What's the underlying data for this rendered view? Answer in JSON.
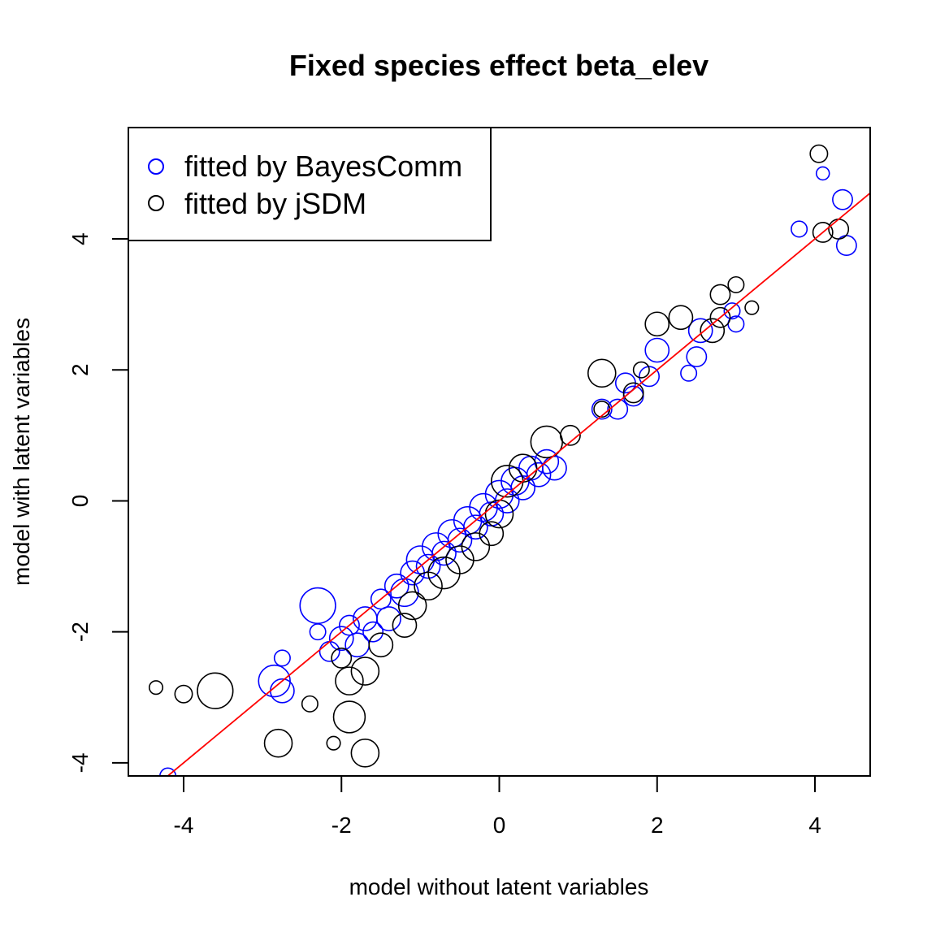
{
  "chart_data": {
    "type": "scatter",
    "title": "Fixed species effect beta_elev",
    "xlabel": "model without latent variables",
    "ylabel": "model with latent variables",
    "xlim": [
      -4.7,
      4.7
    ],
    "ylim": [
      -4.2,
      5.7
    ],
    "xticks": [
      -4,
      -2,
      0,
      2,
      4
    ],
    "yticks": [
      -4,
      -2,
      0,
      2,
      4
    ],
    "xtick_labels": [
      "-4",
      "-2",
      "0",
      "2",
      "4"
    ],
    "ytick_labels": [
      "-4",
      "-2",
      "0",
      "2",
      "4"
    ],
    "legend": {
      "position": "top-left",
      "entries": [
        {
          "label": "fitted by BayesComm",
          "color": "#0000ff"
        },
        {
          "label": "fitted by jSDM",
          "color": "#000000"
        }
      ]
    },
    "reference_line": {
      "type": "identity",
      "color": "#ff0000"
    },
    "series": [
      {
        "name": "fitted by BayesComm",
        "color": "#0000ff",
        "points": [
          {
            "x": -4.2,
            "y": -4.2,
            "r": 0.2
          },
          {
            "x": -2.3,
            "y": -1.6,
            "r": 0.45
          },
          {
            "x": -2.85,
            "y": -2.75,
            "r": 0.4
          },
          {
            "x": -2.75,
            "y": -2.9,
            "r": 0.3
          },
          {
            "x": -2.75,
            "y": -2.4,
            "r": 0.2
          },
          {
            "x": -2.3,
            "y": -2.0,
            "r": 0.2
          },
          {
            "x": -2.15,
            "y": -2.3,
            "r": 0.25
          },
          {
            "x": -2.0,
            "y": -2.1,
            "r": 0.3
          },
          {
            "x": -1.9,
            "y": -1.9,
            "r": 0.25
          },
          {
            "x": -1.8,
            "y": -2.2,
            "r": 0.3
          },
          {
            "x": -1.7,
            "y": -1.8,
            "r": 0.3
          },
          {
            "x": -1.6,
            "y": -2.0,
            "r": 0.25
          },
          {
            "x": -1.5,
            "y": -1.5,
            "r": 0.25
          },
          {
            "x": -1.4,
            "y": -1.8,
            "r": 0.3
          },
          {
            "x": -1.3,
            "y": -1.3,
            "r": 0.3
          },
          {
            "x": -1.2,
            "y": -1.4,
            "r": 0.35
          },
          {
            "x": -1.1,
            "y": -1.1,
            "r": 0.3
          },
          {
            "x": -1.0,
            "y": -0.9,
            "r": 0.35
          },
          {
            "x": -0.9,
            "y": -1.0,
            "r": 0.3
          },
          {
            "x": -0.8,
            "y": -0.7,
            "r": 0.35
          },
          {
            "x": -0.7,
            "y": -0.8,
            "r": 0.3
          },
          {
            "x": -0.6,
            "y": -0.5,
            "r": 0.35
          },
          {
            "x": -0.5,
            "y": -0.6,
            "r": 0.3
          },
          {
            "x": -0.4,
            "y": -0.3,
            "r": 0.35
          },
          {
            "x": -0.3,
            "y": -0.4,
            "r": 0.3
          },
          {
            "x": -0.2,
            "y": -0.1,
            "r": 0.35
          },
          {
            "x": -0.1,
            "y": -0.2,
            "r": 0.3
          },
          {
            "x": 0.0,
            "y": 0.1,
            "r": 0.35
          },
          {
            "x": 0.1,
            "y": 0.0,
            "r": 0.3
          },
          {
            "x": 0.2,
            "y": 0.3,
            "r": 0.35
          },
          {
            "x": 0.3,
            "y": 0.2,
            "r": 0.3
          },
          {
            "x": 0.4,
            "y": 0.5,
            "r": 0.3
          },
          {
            "x": 0.5,
            "y": 0.4,
            "r": 0.3
          },
          {
            "x": 0.6,
            "y": 0.6,
            "r": 0.3
          },
          {
            "x": 0.7,
            "y": 0.5,
            "r": 0.3
          },
          {
            "x": 1.3,
            "y": 1.4,
            "r": 0.25
          },
          {
            "x": 1.5,
            "y": 1.4,
            "r": 0.25
          },
          {
            "x": 1.6,
            "y": 1.8,
            "r": 0.25
          },
          {
            "x": 1.7,
            "y": 1.6,
            "r": 0.25
          },
          {
            "x": 1.9,
            "y": 1.9,
            "r": 0.25
          },
          {
            "x": 2.0,
            "y": 2.3,
            "r": 0.3
          },
          {
            "x": 2.5,
            "y": 2.2,
            "r": 0.25
          },
          {
            "x": 2.4,
            "y": 1.95,
            "r": 0.2
          },
          {
            "x": 2.55,
            "y": 2.6,
            "r": 0.3
          },
          {
            "x": 3.0,
            "y": 2.7,
            "r": 0.2
          },
          {
            "x": 2.95,
            "y": 2.9,
            "r": 0.2
          },
          {
            "x": 3.8,
            "y": 4.15,
            "r": 0.2
          },
          {
            "x": 4.1,
            "y": 5.0,
            "r": 0.15
          },
          {
            "x": 4.35,
            "y": 4.6,
            "r": 0.25
          },
          {
            "x": 4.4,
            "y": 3.9,
            "r": 0.25
          }
        ]
      },
      {
        "name": "fitted by jSDM",
        "color": "#000000",
        "points": [
          {
            "x": -4.35,
            "y": -2.85,
            "r": 0.17
          },
          {
            "x": -4.0,
            "y": -2.95,
            "r": 0.22
          },
          {
            "x": -3.6,
            "y": -2.9,
            "r": 0.45
          },
          {
            "x": -2.8,
            "y": -3.7,
            "r": 0.35
          },
          {
            "x": -2.4,
            "y": -3.1,
            "r": 0.2
          },
          {
            "x": -2.1,
            "y": -3.7,
            "r": 0.17
          },
          {
            "x": -1.9,
            "y": -3.3,
            "r": 0.4
          },
          {
            "x": -1.7,
            "y": -3.85,
            "r": 0.35
          },
          {
            "x": -1.9,
            "y": -2.75,
            "r": 0.35
          },
          {
            "x": -1.7,
            "y": -2.6,
            "r": 0.35
          },
          {
            "x": -2.0,
            "y": -2.4,
            "r": 0.25
          },
          {
            "x": -1.5,
            "y": -2.2,
            "r": 0.3
          },
          {
            "x": -1.2,
            "y": -1.9,
            "r": 0.3
          },
          {
            "x": -1.1,
            "y": -1.6,
            "r": 0.35
          },
          {
            "x": -0.9,
            "y": -1.3,
            "r": 0.35
          },
          {
            "x": -0.7,
            "y": -1.1,
            "r": 0.4
          },
          {
            "x": -0.5,
            "y": -0.9,
            "r": 0.35
          },
          {
            "x": -0.3,
            "y": -0.7,
            "r": 0.35
          },
          {
            "x": -0.1,
            "y": -0.5,
            "r": 0.3
          },
          {
            "x": 0.0,
            "y": -0.2,
            "r": 0.35
          },
          {
            "x": 0.1,
            "y": 0.3,
            "r": 0.4
          },
          {
            "x": 0.3,
            "y": 0.5,
            "r": 0.35
          },
          {
            "x": 0.6,
            "y": 0.9,
            "r": 0.4
          },
          {
            "x": 0.9,
            "y": 1.0,
            "r": 0.25
          },
          {
            "x": 1.3,
            "y": 1.4,
            "r": 0.2
          },
          {
            "x": 1.3,
            "y": 1.95,
            "r": 0.35
          },
          {
            "x": 1.7,
            "y": 1.65,
            "r": 0.25
          },
          {
            "x": 1.8,
            "y": 2.0,
            "r": 0.2
          },
          {
            "x": 2.0,
            "y": 2.7,
            "r": 0.3
          },
          {
            "x": 2.3,
            "y": 2.8,
            "r": 0.3
          },
          {
            "x": 2.7,
            "y": 2.6,
            "r": 0.3
          },
          {
            "x": 2.8,
            "y": 2.8,
            "r": 0.25
          },
          {
            "x": 2.8,
            "y": 3.15,
            "r": 0.25
          },
          {
            "x": 3.0,
            "y": 3.3,
            "r": 0.2
          },
          {
            "x": 3.2,
            "y": 2.95,
            "r": 0.17
          },
          {
            "x": 4.05,
            "y": 5.3,
            "r": 0.22
          },
          {
            "x": 4.1,
            "y": 4.1,
            "r": 0.25
          },
          {
            "x": 4.3,
            "y": 4.15,
            "r": 0.25
          }
        ]
      }
    ]
  }
}
